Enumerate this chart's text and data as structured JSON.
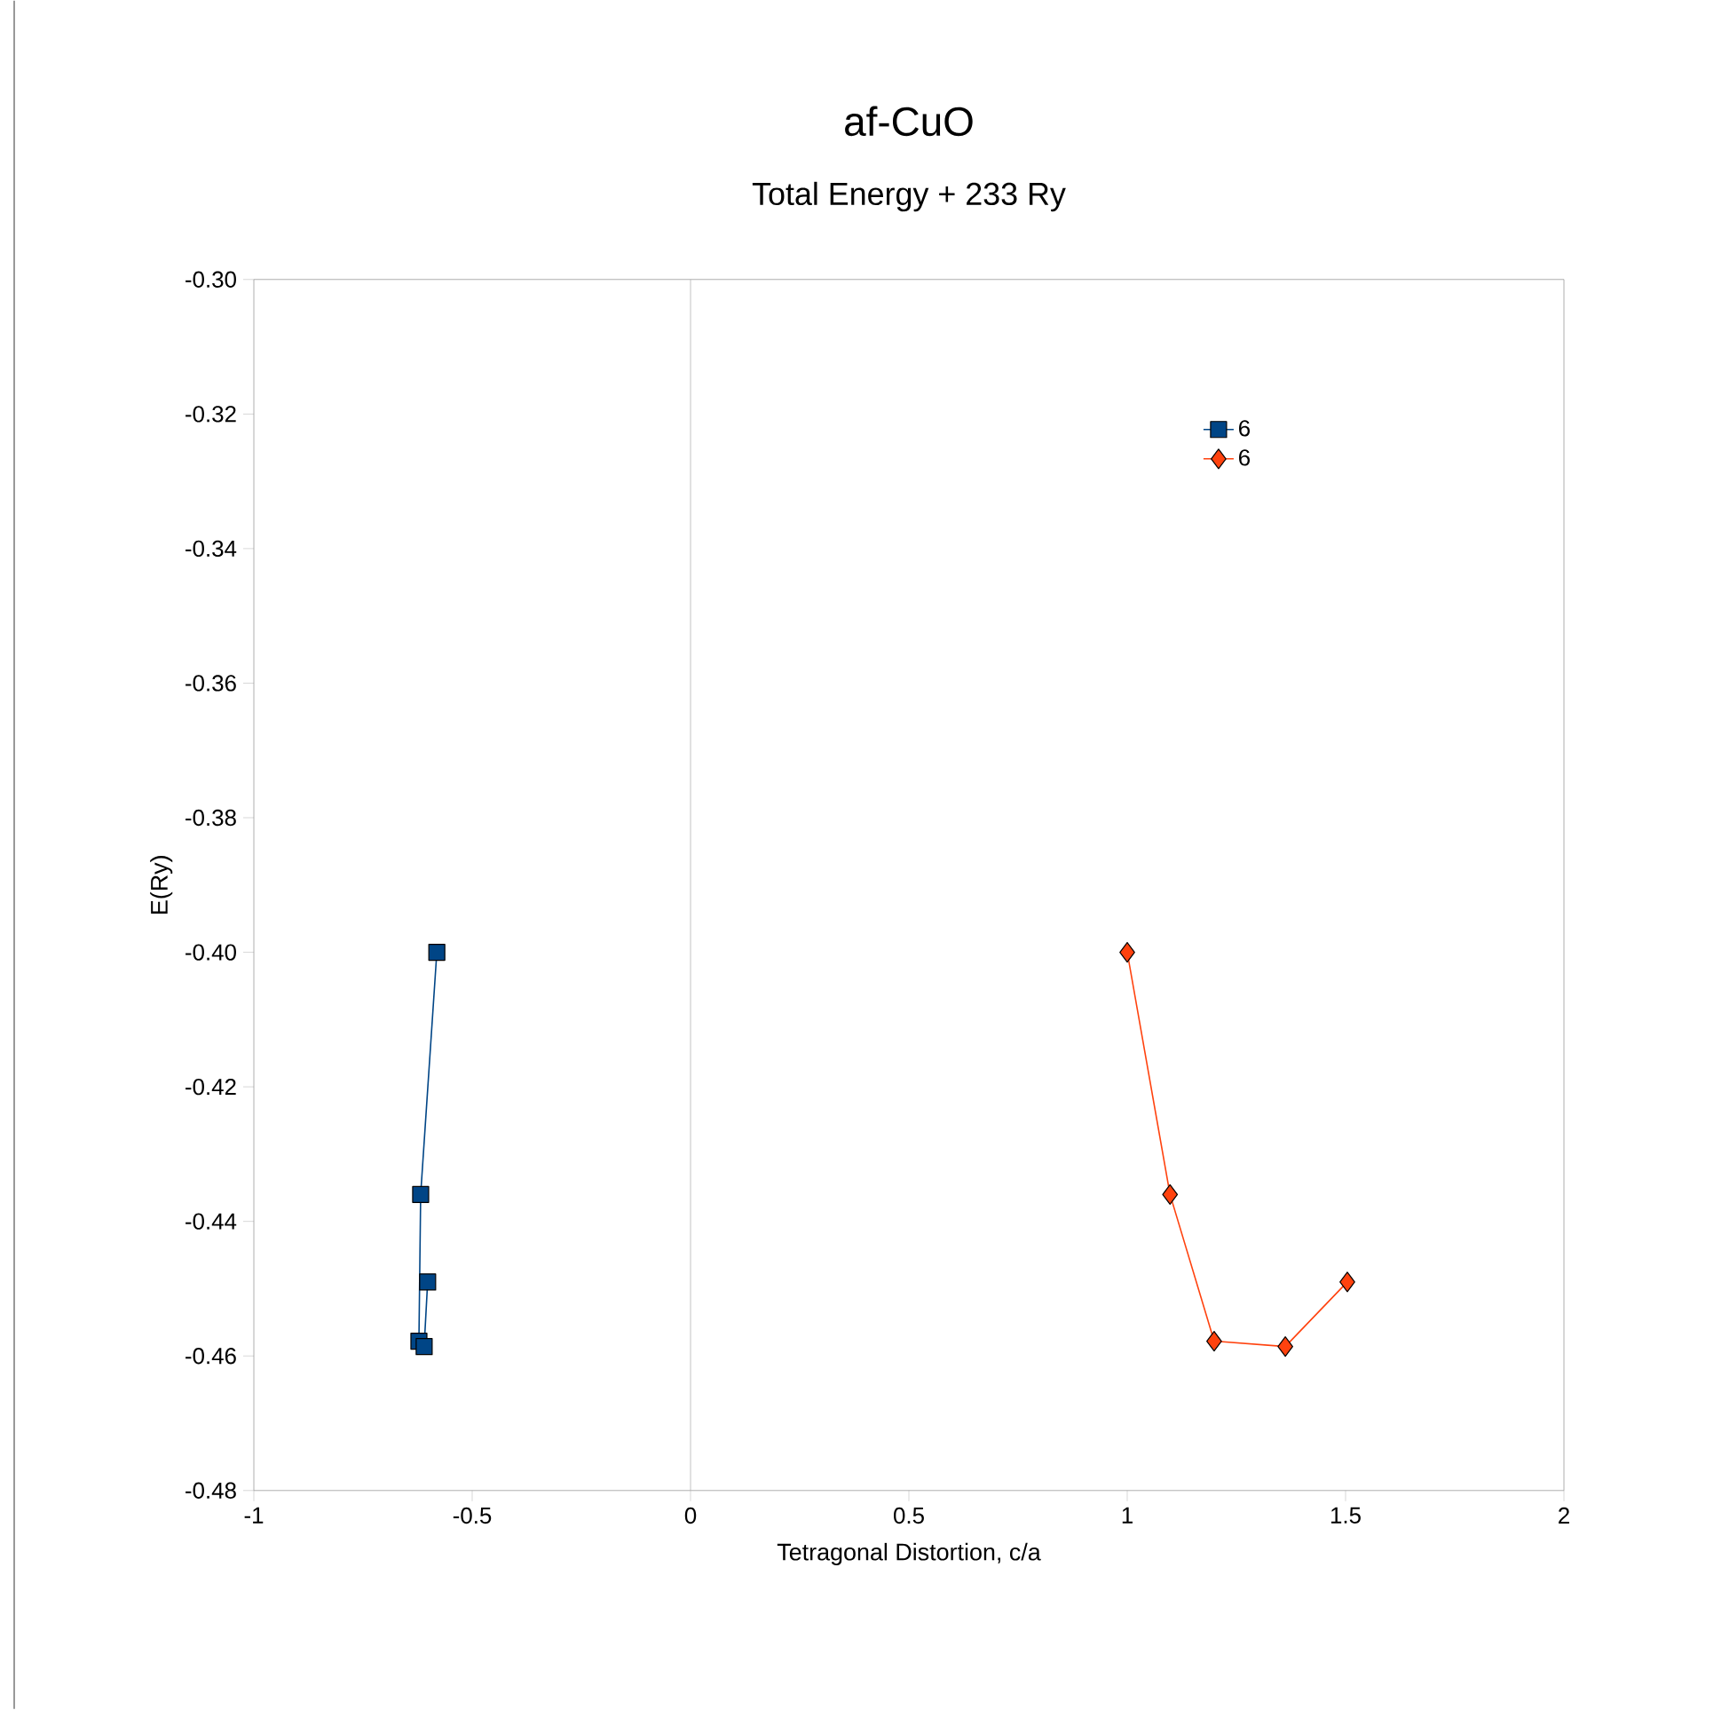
{
  "chart_data": {
    "type": "line",
    "title": "af-CuO",
    "subtitle": "Total Energy + 233 Ry",
    "xlabel": "Tetragonal Distortion, c/a",
    "ylabel": "E(Ry)",
    "series": [
      {
        "name": "6",
        "color": "#004586",
        "marker": "square",
        "x": [
          -0.581,
          -0.618,
          -0.622,
          -0.61,
          -0.602
        ],
        "values": [
          -0.4,
          -0.436,
          -0.4578,
          -0.4586,
          -0.449
        ]
      },
      {
        "name": "6",
        "color": "#ff420e",
        "marker": "diamond",
        "x": [
          1.0,
          1.098,
          1.199,
          1.362,
          1.504
        ],
        "values": [
          -0.4,
          -0.436,
          -0.4578,
          -0.4586,
          -0.449
        ]
      }
    ],
    "xlim": [
      -1,
      2
    ],
    "xticks": [
      -1,
      -0.5,
      0,
      0.5,
      1,
      1.5,
      2
    ],
    "ylim": [
      -0.48,
      -0.3
    ],
    "yticks": [
      {
        "value": -0.48,
        "label": "-0.48"
      },
      {
        "value": -0.46,
        "label": "-0.46"
      },
      {
        "value": -0.44,
        "label": "-0.44"
      },
      {
        "value": -0.42,
        "label": "-0.42"
      },
      {
        "value": -0.4,
        "label": "-0.40"
      },
      {
        "value": -0.38,
        "label": "-0.38"
      },
      {
        "value": -0.36,
        "label": "-0.36"
      },
      {
        "value": -0.34,
        "label": "-0.34"
      },
      {
        "value": -0.32,
        "label": "-0.32"
      },
      {
        "value": -0.3,
        "label": "-0.30"
      }
    ],
    "ref_lines": [
      {
        "axis": "x",
        "value": 0,
        "color": "#b3b3b3"
      }
    ],
    "legend": "top right"
  }
}
